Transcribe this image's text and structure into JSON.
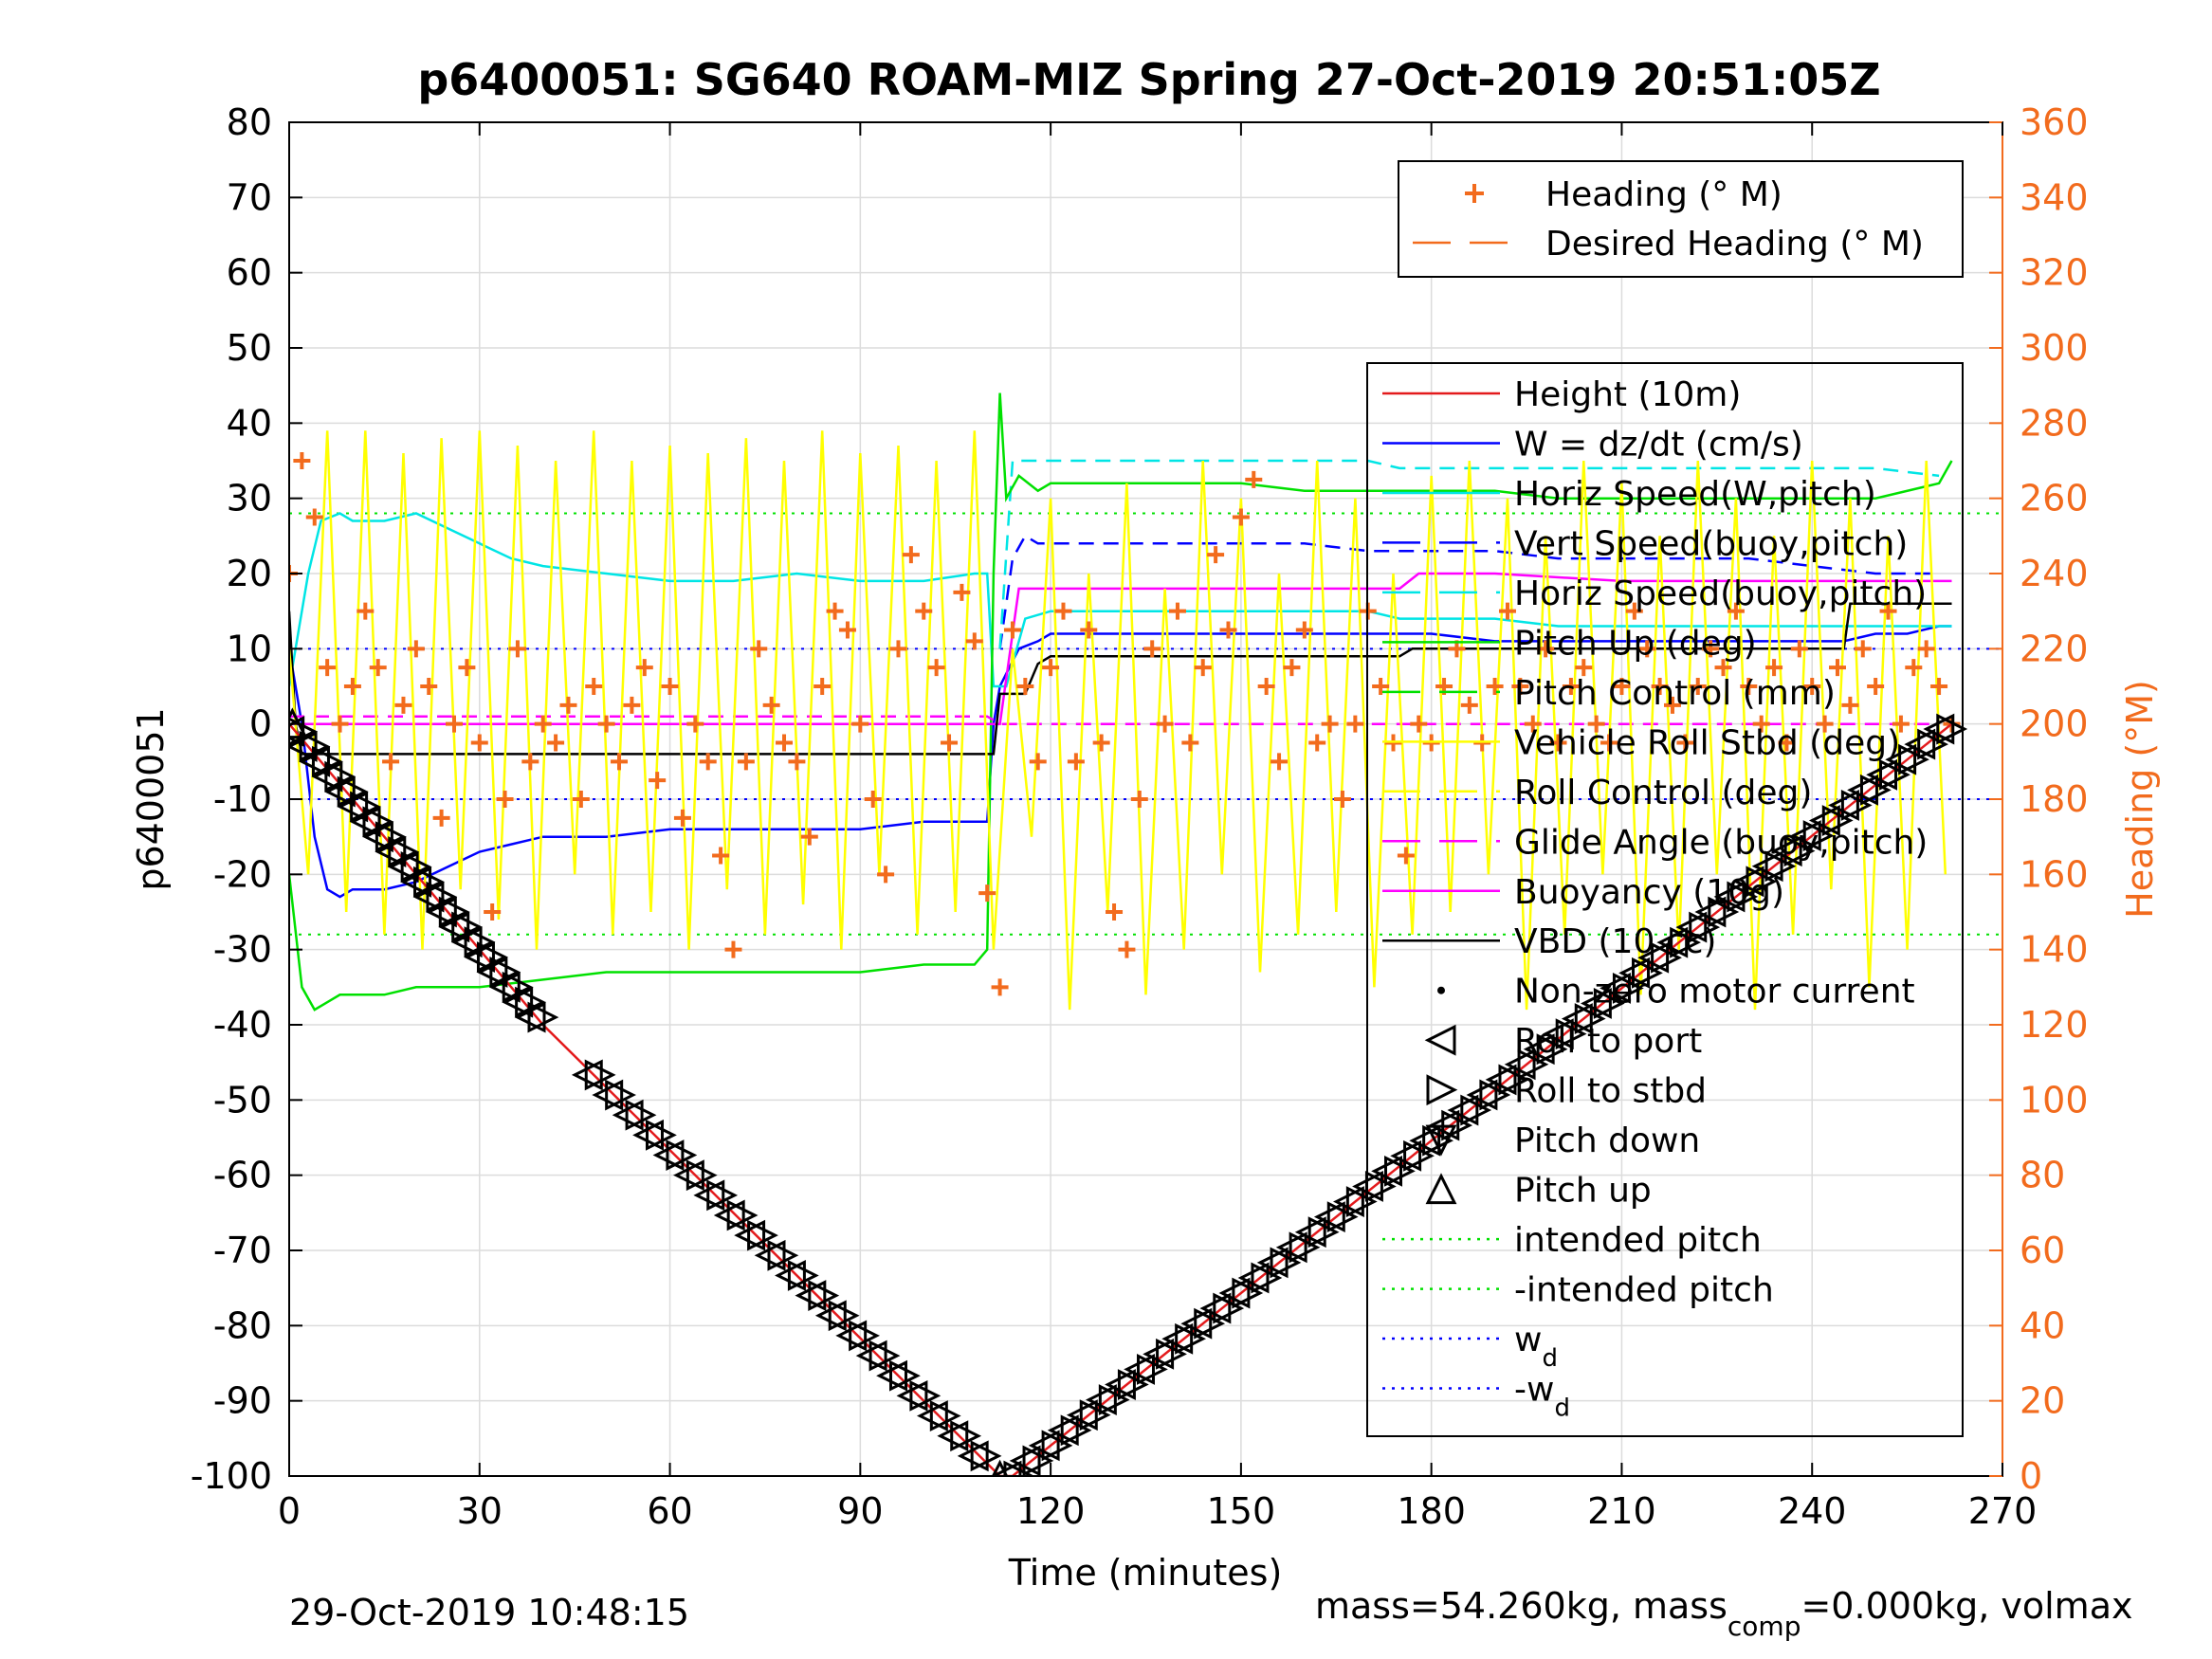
{
  "chart_data": {
    "type": "line",
    "title": "p6400051: SG640 ROAM-MIZ Spring 27-Oct-2019 20:51:05Z",
    "xlabel": "Time (minutes)",
    "ylabel": "p6400051",
    "ylabel_right": "Heading (°M)",
    "xlim": [
      0,
      270
    ],
    "ylim": [
      -100,
      80
    ],
    "ylim_right": [
      0,
      360
    ],
    "xticks": [
      "0",
      "30",
      "60",
      "90",
      "120",
      "150",
      "180",
      "210",
      "240",
      "270"
    ],
    "yticks": [
      "80",
      "70",
      "60",
      "50",
      "40",
      "30",
      "20",
      "10",
      "0",
      "-10",
      "-20",
      "-30",
      "-40",
      "-50",
      "-60",
      "-70",
      "-80",
      "-90",
      "-100"
    ],
    "yticks_right": [
      "360",
      "340",
      "320",
      "300",
      "280",
      "260",
      "240",
      "220",
      "200",
      "180",
      "160",
      "140",
      "120",
      "100",
      "80",
      "60",
      "40",
      "20",
      "0"
    ],
    "grid": true,
    "footer_left": "29-Oct-2019 10:48:15",
    "footer_right_parts": [
      "mass=54.260kg, mass",
      "comp",
      "=0.000kg, volmax"
    ],
    "legend_heading": [
      {
        "name": "Heading (° M)",
        "color": "#f26b1d",
        "style": "plus"
      },
      {
        "name": "Desired Heading (° M)",
        "color": "#f26b1d",
        "style": "dash"
      }
    ],
    "legend_main": [
      {
        "name": "Height (10m)",
        "color": "#e31a1c",
        "style": "solid"
      },
      {
        "name": "W = dz/dt (cm/s)",
        "color": "#0000ff",
        "style": "solid"
      },
      {
        "name": "Horiz Speed(W,pitch)",
        "color": "#00e5e5",
        "style": "solid"
      },
      {
        "name": "Vert Speed(buoy,pitch)",
        "color": "#0000ff",
        "style": "dash"
      },
      {
        "name": "Horiz Speed(buoy,pitch)",
        "color": "#00e5e5",
        "style": "dash"
      },
      {
        "name": "Pitch Up (deg)",
        "color": "#00e000",
        "style": "solid"
      },
      {
        "name": "Pitch Control (mm)",
        "color": "#00e000",
        "style": "dash"
      },
      {
        "name": "Vehicle Roll Stbd (deg)",
        "color": "#ffff00",
        "style": "solid"
      },
      {
        "name": "Roll Control (deg)",
        "color": "#ffff00",
        "style": "dash"
      },
      {
        "name": "Glide Angle (buoy,pitch)",
        "color": "#ff00ff",
        "style": "dash"
      },
      {
        "name": "Buoyancy (10g)",
        "color": "#ff00ff",
        "style": "solid"
      },
      {
        "name": "VBD (10 cc)",
        "color": "#000000",
        "style": "solid"
      },
      {
        "name": "Non-zero motor current",
        "color": "#000000",
        "style": "dot"
      },
      {
        "name": "Roll to port",
        "color": "#000000",
        "style": "tri-left"
      },
      {
        "name": "Roll to stbd",
        "color": "#000000",
        "style": "tri-right"
      },
      {
        "name": "Pitch down",
        "color": "#000000",
        "style": "tri-down"
      },
      {
        "name": "Pitch up",
        "color": "#000000",
        "style": "tri-up"
      },
      {
        "name": "intended pitch",
        "color": "#00e000",
        "style": "dotted"
      },
      {
        "name": "-intended pitch",
        "color": "#00e000",
        "style": "dotted"
      },
      {
        "name": "w",
        "sub": "d",
        "color": "#0000ff",
        "style": "dotted"
      },
      {
        "name": "-w",
        "sub": "d",
        "color": "#0000ff",
        "style": "dotted"
      }
    ],
    "reference_lines": {
      "intended_pitch": 28,
      "neg_intended_pitch": -28,
      "w_d": 10,
      "neg_w_d": -10
    },
    "height_path": {
      "x": [
        0,
        40,
        112,
        114,
        262
      ],
      "y": [
        0,
        -40,
        -100,
        -100,
        0
      ]
    },
    "series": [
      {
        "name": "W = dz/dt (cm/s)",
        "color": "#0000ff",
        "style": "solid",
        "x": [
          0,
          2,
          4,
          6,
          8,
          10,
          15,
          20,
          25,
          30,
          35,
          40,
          50,
          60,
          70,
          80,
          90,
          100,
          108,
          110,
          111,
          112,
          115,
          118,
          120,
          130,
          140,
          150,
          160,
          170,
          175,
          180,
          190,
          200,
          210,
          220,
          230,
          240,
          245,
          250,
          255,
          260,
          262
        ],
        "y": [
          10,
          0,
          -15,
          -22,
          -23,
          -22,
          -22,
          -21,
          -19,
          -17,
          -16,
          -15,
          -15,
          -14,
          -14,
          -14,
          -14,
          -13,
          -13,
          -13,
          0,
          5,
          10,
          11,
          12,
          12,
          12,
          12,
          12,
          12,
          12,
          12,
          11,
          11,
          11,
          11,
          11,
          11,
          11,
          12,
          12,
          13,
          13
        ]
      },
      {
        "name": "Horiz Speed(W,pitch)",
        "color": "#00e5e5",
        "style": "solid",
        "x": [
          0,
          3,
          5,
          8,
          10,
          15,
          20,
          25,
          30,
          35,
          40,
          50,
          60,
          70,
          80,
          90,
          100,
          108,
          110,
          111,
          113,
          116,
          120,
          130,
          140,
          150,
          160,
          170,
          175,
          180,
          190,
          200,
          210,
          220,
          230,
          240,
          250,
          260,
          262
        ],
        "y": [
          5,
          20,
          27,
          28,
          27,
          27,
          28,
          26,
          24,
          22,
          21,
          20,
          19,
          19,
          20,
          19,
          19,
          20,
          20,
          5,
          5,
          14,
          15,
          15,
          15,
          15,
          15,
          15,
          14,
          14,
          14,
          13,
          13,
          13,
          13,
          13,
          13,
          13,
          13
        ]
      },
      {
        "name": "Vert Speed(buoy,pitch)",
        "color": "#0000ff",
        "style": "dash",
        "x": [
          112,
          114,
          116,
          118,
          120,
          130,
          140,
          150,
          160,
          170,
          175,
          180,
          190,
          200,
          210,
          220,
          230,
          240,
          250,
          260
        ],
        "y": [
          10,
          22,
          25,
          24,
          24,
          24,
          24,
          24,
          24,
          23,
          23,
          23,
          23,
          22,
          22,
          22,
          22,
          21,
          20,
          20
        ]
      },
      {
        "name": "Horiz Speed(buoy,pitch)",
        "color": "#00e5e5",
        "style": "dash",
        "x": [
          112,
          114,
          116,
          120,
          130,
          140,
          150,
          160,
          170,
          175,
          180,
          190,
          200,
          210,
          220,
          230,
          240,
          250,
          260
        ],
        "y": [
          10,
          35,
          35,
          35,
          35,
          35,
          35,
          35,
          35,
          34,
          34,
          34,
          34,
          34,
          34,
          34,
          34,
          34,
          33
        ]
      },
      {
        "name": "Pitch Up (deg)",
        "color": "#00e000",
        "style": "solid",
        "x": [
          0,
          2,
          4,
          6,
          8,
          10,
          15,
          20,
          30,
          40,
          50,
          60,
          70,
          80,
          90,
          100,
          108,
          110,
          111,
          112,
          113,
          115,
          118,
          120,
          130,
          140,
          150,
          160,
          170,
          180,
          190,
          200,
          210,
          220,
          230,
          240,
          250,
          260,
          262
        ],
        "y": [
          -20,
          -35,
          -38,
          -37,
          -36,
          -36,
          -36,
          -35,
          -35,
          -34,
          -33,
          -33,
          -33,
          -33,
          -33,
          -32,
          -32,
          -30,
          20,
          44,
          30,
          33,
          31,
          32,
          32,
          32,
          32,
          31,
          31,
          31,
          31,
          30,
          30,
          30,
          30,
          30,
          30,
          32,
          35
        ]
      },
      {
        "name": "Buoyancy (10g)",
        "color": "#ff00ff",
        "style": "solid",
        "x": [
          0,
          20,
          60,
          100,
          110,
          112,
          115,
          120,
          140,
          160,
          175,
          178,
          190,
          210,
          230,
          250,
          262
        ],
        "y": [
          0,
          0,
          0,
          0,
          0,
          0,
          18,
          18,
          18,
          18,
          18,
          20,
          20,
          19,
          19,
          19,
          19
        ]
      },
      {
        "name": "Glide Angle (buoy,pitch)",
        "color": "#ff00ff",
        "style": "dash",
        "x": [
          0,
          20,
          60,
          100,
          110,
          112,
          115,
          120,
          140,
          160,
          175,
          180,
          200,
          220,
          240,
          260
        ],
        "y": [
          1,
          1,
          1,
          1,
          1,
          0,
          0,
          0,
          0,
          0,
          0,
          0,
          0,
          0,
          0,
          0
        ]
      },
      {
        "name": "VBD (10 cc)",
        "color": "#000000",
        "style": "solid",
        "x": [
          0,
          1,
          2,
          5,
          20,
          60,
          100,
          111,
          112,
          114,
          116,
          118,
          120,
          140,
          160,
          175,
          177,
          190,
          220,
          240,
          245,
          246,
          262
        ],
        "y": [
          15,
          0,
          -4,
          -4,
          -4,
          -4,
          -4,
          -4,
          4,
          4,
          4,
          8,
          9,
          9,
          9,
          9,
          10,
          10,
          10,
          10,
          10,
          16,
          16
        ]
      },
      {
        "name": "Vehicle Roll Stbd (deg)",
        "color": "#ffff00",
        "style": "solid",
        "x": [
          0,
          3,
          6,
          9,
          12,
          15,
          18,
          21,
          24,
          27,
          30,
          33,
          36,
          39,
          42,
          45,
          48,
          51,
          54,
          57,
          60,
          63,
          66,
          69,
          72,
          75,
          78,
          81,
          84,
          87,
          90,
          93,
          96,
          99,
          102,
          105,
          108,
          111,
          114,
          117,
          120,
          123,
          126,
          129,
          132,
          135,
          138,
          141,
          144,
          147,
          150,
          153,
          156,
          159,
          162,
          165,
          168,
          171,
          174,
          177,
          180,
          183,
          186,
          189,
          192,
          195,
          198,
          201,
          204,
          207,
          210,
          213,
          216,
          219,
          222,
          225,
          228,
          231,
          234,
          237,
          240,
          243,
          246,
          249,
          252,
          255,
          258,
          261
        ],
        "y": [
          10,
          -20,
          39,
          -25,
          39,
          -28,
          36,
          -30,
          38,
          -22,
          39,
          -26,
          37,
          -30,
          35,
          -20,
          39,
          -28,
          35,
          -25,
          37,
          -30,
          36,
          -22,
          38,
          -28,
          35,
          -24,
          39,
          -30,
          36,
          -20,
          37,
          -28,
          35,
          -25,
          39,
          -30,
          10,
          -15,
          30,
          -38,
          20,
          -25,
          32,
          -36,
          18,
          -30,
          35,
          -20,
          30,
          -33,
          20,
          -28,
          35,
          -25,
          30,
          -35,
          20,
          -28,
          33,
          -25,
          35,
          -20,
          30,
          -38,
          25,
          -28,
          35,
          -20,
          32,
          -36,
          25,
          -30,
          35,
          -20,
          30,
          -38,
          25,
          -28,
          35,
          -22,
          30,
          -35,
          25,
          -30,
          35,
          -20
        ]
      },
      {
        "name": "Heading (° M)",
        "color": "#f26b1d",
        "style": "plus",
        "x": [
          0,
          2,
          4,
          6,
          8,
          10,
          12,
          14,
          16,
          18,
          20,
          22,
          24,
          26,
          28,
          30,
          32,
          34,
          36,
          38,
          40,
          42,
          44,
          46,
          48,
          50,
          52,
          54,
          56,
          58,
          60,
          62,
          64,
          66,
          68,
          70,
          72,
          74,
          76,
          78,
          80,
          82,
          84,
          86,
          88,
          90,
          92,
          94,
          96,
          98,
          100,
          102,
          104,
          106,
          108,
          110,
          112,
          114,
          116,
          118,
          120,
          122,
          124,
          126,
          128,
          130,
          132,
          134,
          136,
          138,
          140,
          142,
          144,
          146,
          148,
          150,
          152,
          154,
          156,
          158,
          160,
          162,
          164,
          166,
          168,
          170,
          172,
          174,
          176,
          178,
          180,
          182,
          184,
          186,
          188,
          190,
          192,
          194,
          196,
          198,
          200,
          202,
          204,
          206,
          208,
          210,
          212,
          214,
          216,
          218,
          220,
          222,
          224,
          226,
          228,
          230,
          232,
          234,
          236,
          238,
          240,
          242,
          244,
          246,
          248,
          250,
          252,
          254,
          256,
          258,
          260,
          262
        ],
        "y": [
          240,
          270,
          255,
          215,
          200,
          210,
          230,
          215,
          190,
          205,
          220,
          210,
          175,
          200,
          215,
          195,
          150,
          180,
          220,
          190,
          200,
          195,
          205,
          180,
          210,
          200,
          190,
          205,
          215,
          185,
          210,
          175,
          200,
          190,
          165,
          140,
          190,
          220,
          205,
          195,
          190,
          170,
          210,
          230,
          225,
          200,
          180,
          160,
          220,
          245,
          230,
          215,
          195,
          235,
          222,
          155,
          130,
          225,
          210,
          190,
          215,
          230,
          190,
          225,
          195,
          150,
          140,
          180,
          220,
          200,
          230,
          195,
          215,
          245,
          225,
          255,
          265,
          210,
          190,
          215,
          225,
          195,
          200,
          180,
          200,
          230,
          210,
          195,
          165,
          200,
          195,
          210,
          220,
          205,
          195,
          210,
          230,
          210,
          200,
          220,
          195,
          210,
          215,
          200,
          195,
          210,
          230,
          220,
          210,
          205,
          195,
          210,
          220,
          215,
          230,
          210,
          200,
          215,
          195,
          220,
          210,
          200,
          215,
          205,
          220,
          210,
          230,
          200,
          215,
          220,
          210,
          200
        ]
      }
    ]
  }
}
